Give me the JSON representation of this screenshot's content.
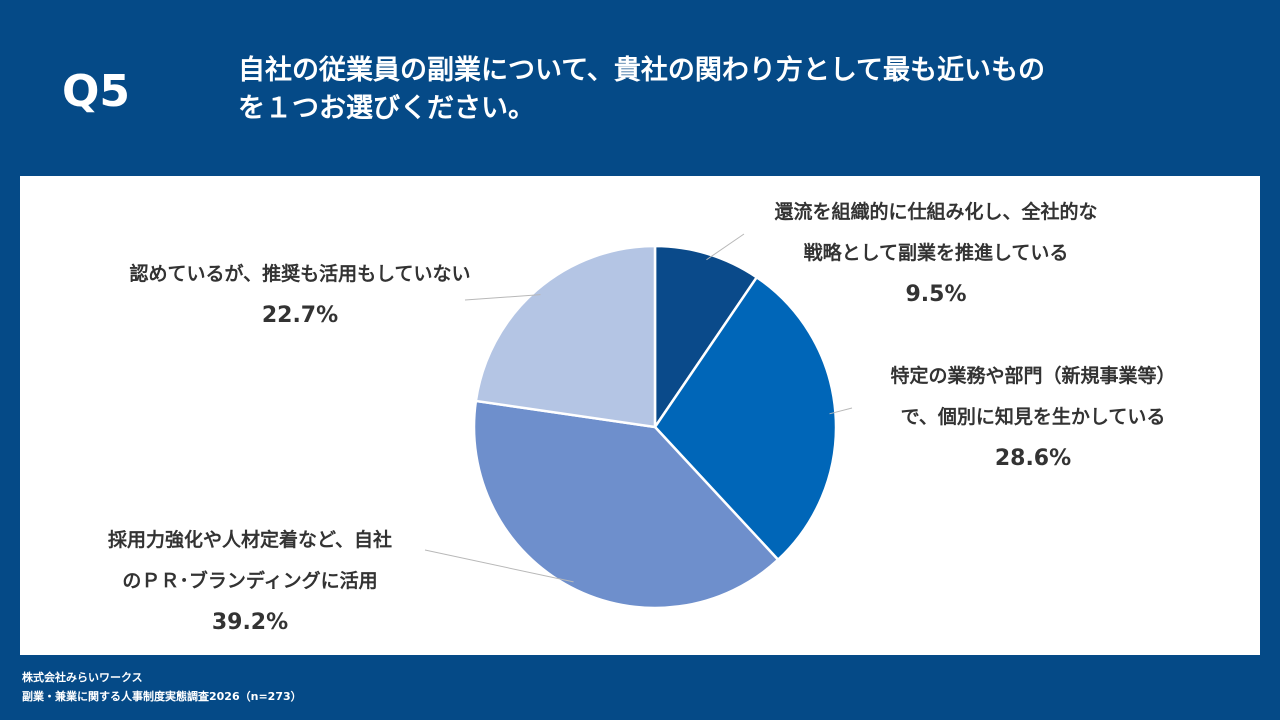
{
  "question_number": "Q5",
  "question_line1": "自社の従業員の副業について、貴社の関わり方として最も近いもの",
  "question_line2": "を１つお選びください。",
  "chart_data": {
    "type": "pie",
    "slices": [
      {
        "line1": "還流を組織的に仕組み化し、全社的な",
        "line2": "戦略として副業を推進している",
        "value": 9.5,
        "pct_label": "9.5%",
        "color": "#0a4a8a"
      },
      {
        "line1": "特定の業務や部門（新規事業等）",
        "line2": "で、個別に知見を生かしている",
        "value": 28.6,
        "pct_label": "28.6%",
        "color": "#0066b8"
      },
      {
        "line1": "採用力強化や人材定着など、自社",
        "line2": "のＰＲ･ブランディングに活用",
        "value": 39.2,
        "pct_label": "39.2%",
        "color": "#6e8fcc"
      },
      {
        "line1": "認めているが、推奨も活用もしていない",
        "line2": "",
        "value": 22.7,
        "pct_label": "22.7%",
        "color": "#b4c5e4"
      }
    ]
  },
  "footer": {
    "company": "株式会社みらいワークス",
    "survey": "副業・兼業に関する人事制度実態調査2026（n=273）"
  }
}
